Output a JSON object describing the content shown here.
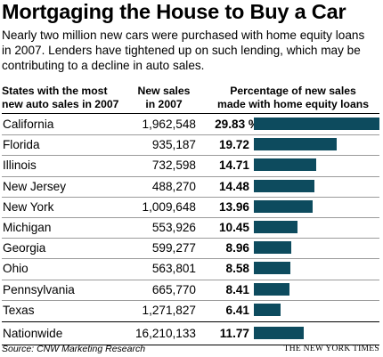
{
  "title": "Mortgaging the House to Buy a Car",
  "intro": "Nearly two million new cars were purchased with home equity loans in 2007. Lenders have tightened up on such lending, which may be contributing to a decline in auto sales.",
  "columns": {
    "states_line1": "States with the most",
    "states_line2": "new auto sales in 2007",
    "sales_line1": "New sales",
    "sales_line2": "in 2007",
    "pct_line1": "Percentage of new sales",
    "pct_line2": "made with home equity loans"
  },
  "source": "Source: CNW Marketing Research",
  "credit": "THE NEW YORK TIMES",
  "colors": {
    "bar": "#0d4b5e"
  },
  "chart_data": {
    "type": "bar",
    "orientation": "horizontal",
    "title": "Mortgaging the House to Buy a Car",
    "categories": [
      "California",
      "Florida",
      "Illinois",
      "New Jersey",
      "New York",
      "Michigan",
      "Georgia",
      "Ohio",
      "Pennsylvania",
      "Texas",
      "Nationwide"
    ],
    "new_sales_2007": [
      "1,962,548",
      "935,187",
      "732,598",
      "488,270",
      "1,009,648",
      "553,926",
      "599,277",
      "563,801",
      "665,770",
      "1,271,827",
      "16,210,133"
    ],
    "pct_labels": [
      "29.83 %",
      "19.72",
      "14.71",
      "14.48",
      "13.96",
      "10.45",
      "8.96",
      "8.58",
      "8.41",
      "6.41",
      "11.77"
    ],
    "values": [
      29.83,
      19.72,
      14.71,
      14.48,
      13.96,
      10.45,
      8.96,
      8.58,
      8.41,
      6.41,
      11.77
    ],
    "xlim": [
      0,
      29.83
    ]
  }
}
